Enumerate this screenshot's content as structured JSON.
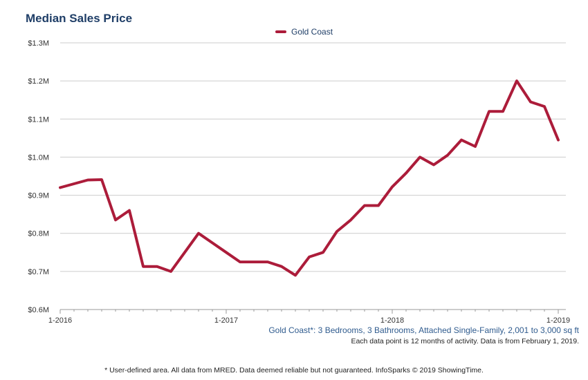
{
  "chart_data": {
    "type": "line",
    "title": "Median Sales Price",
    "ylabel": "",
    "xlabel": "",
    "ylim": [
      0.6,
      1.3
    ],
    "yunit": "$M",
    "yticks": [
      "$0.6M",
      "$0.7M",
      "$0.8M",
      "$0.9M",
      "$1.0M",
      "$1.1M",
      "$1.2M",
      "$1.3M"
    ],
    "xticks": [
      "1-2016",
      "1-2017",
      "1-2018",
      "1-2019"
    ],
    "grid": "horizontal",
    "legend_position": "top-center",
    "series": [
      {
        "name": "Gold Coast",
        "color": "#ac1c3a",
        "x": [
          "1-2016",
          "2-2016",
          "3-2016",
          "4-2016",
          "5-2016",
          "6-2016",
          "7-2016",
          "8-2016",
          "9-2016",
          "10-2016",
          "11-2016",
          "12-2016",
          "1-2017",
          "2-2017",
          "3-2017",
          "4-2017",
          "5-2017",
          "6-2017",
          "7-2017",
          "8-2017",
          "9-2017",
          "10-2017",
          "11-2017",
          "12-2017",
          "1-2018",
          "2-2018",
          "3-2018",
          "4-2018",
          "5-2018",
          "6-2018",
          "7-2018",
          "8-2018",
          "9-2018",
          "10-2018",
          "11-2018",
          "12-2018",
          "1-2019"
        ],
        "values": [
          0.92,
          0.93,
          0.94,
          0.941,
          0.835,
          0.86,
          0.713,
          0.713,
          0.7,
          0.75,
          0.8,
          0.775,
          0.75,
          0.725,
          0.725,
          0.725,
          0.713,
          0.69,
          0.738,
          0.75,
          0.805,
          0.835,
          0.873,
          0.873,
          0.922,
          0.958,
          1.0,
          0.98,
          1.005,
          1.045,
          1.028,
          1.12,
          1.12,
          1.2,
          1.145,
          1.133,
          1.045
        ]
      }
    ]
  },
  "notes": {
    "area_definition": "Gold Coast*: 3 Bedrooms, 3 Bathrooms, Attached Single-Family, 2,001 to 3,000 sq ft",
    "data_period": "Each data point is 12 months of activity. Data is from February 1, 2019.",
    "footer": "* User-defined area. All data from MRED. Data deemed reliable but not guaranteed. InfoSparks © 2019 ShowingTime."
  }
}
